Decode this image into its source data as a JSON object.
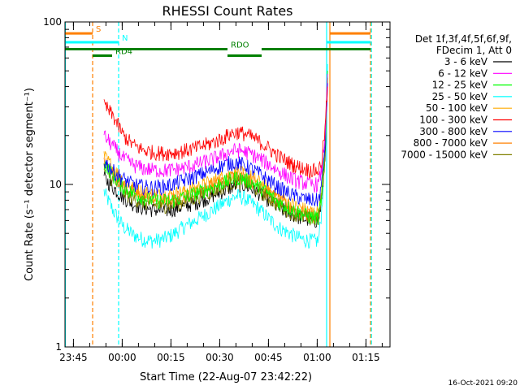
{
  "chart_data": {
    "type": "line",
    "title": "RHESSI Count Rates",
    "xlabel": "Start Time (22-Aug-07 23:42:22)",
    "ylabel": "Count Rate (s⁻¹ detector segment⁻¹)",
    "y_scale": "log",
    "ylim": [
      1,
      100
    ],
    "y_ticks": [
      {
        "value": 1,
        "label": "1"
      },
      {
        "value": 10,
        "label": "10"
      },
      {
        "value": 100,
        "label": "100"
      }
    ],
    "x_unit": "minutes after 23:42:22",
    "xlim": [
      0,
      100
    ],
    "x_ticks": [
      {
        "value": 2.6,
        "label": "23:45"
      },
      {
        "value": 17.6,
        "label": "00:00"
      },
      {
        "value": 32.6,
        "label": "00:15"
      },
      {
        "value": 47.6,
        "label": "00:30"
      },
      {
        "value": 62.6,
        "label": "00:45"
      },
      {
        "value": 77.6,
        "label": "01:00"
      },
      {
        "value": 92.6,
        "label": "01:15"
      }
    ],
    "legend_header": [
      "Det 1f,3f,4f,5f,6f,9f,",
      "FDecim 1, Att 0"
    ],
    "legend_position": "right",
    "series": [
      {
        "name": "3 - 6 keV",
        "color": "#000000",
        "x": [
          12,
          15,
          18,
          21,
          24,
          27,
          30,
          33,
          36,
          40,
          44,
          48,
          51,
          53,
          55,
          57,
          60,
          63,
          66,
          70,
          73,
          76,
          78,
          79,
          80,
          80.8
        ],
        "y": [
          11,
          9.5,
          8.3,
          7.6,
          7.2,
          7.0,
          6.9,
          7.0,
          7.3,
          7.7,
          8.3,
          9.0,
          9.6,
          10.0,
          9.9,
          9.5,
          8.8,
          7.9,
          7.1,
          6.5,
          6.2,
          6.0,
          6.0,
          8.0,
          15,
          45
        ]
      },
      {
        "name": "6 - 12 keV",
        "color": "#ff00ff",
        "x": [
          12,
          15,
          18,
          21,
          24,
          27,
          30,
          33,
          36,
          40,
          44,
          48,
          51,
          53,
          55,
          57,
          60,
          63,
          66,
          70,
          73,
          76,
          78,
          79,
          80,
          80.8
        ],
        "y": [
          20,
          17,
          14.5,
          13.2,
          12.6,
          12.3,
          12.2,
          12.3,
          12.6,
          13.2,
          14.0,
          15.0,
          16.0,
          16.3,
          16.0,
          15.5,
          14.4,
          13.2,
          12.0,
          10.8,
          10.3,
          10.0,
          10.0,
          12.5,
          20,
          48
        ]
      },
      {
        "name": "12 - 25 keV",
        "color": "#00ff00",
        "x": [
          12,
          15,
          18,
          21,
          24,
          27,
          30,
          33,
          36,
          40,
          44,
          48,
          51,
          53,
          55,
          57,
          60,
          63,
          66,
          70,
          73,
          76,
          78,
          79,
          80,
          80.8
        ],
        "y": [
          13.5,
          11.2,
          9.6,
          8.8,
          8.3,
          8.0,
          7.9,
          8.0,
          8.3,
          8.8,
          9.4,
          10.1,
          10.7,
          11.0,
          10.8,
          10.4,
          9.6,
          8.6,
          7.7,
          7.0,
          6.6,
          6.3,
          6.3,
          8.5,
          16,
          50
        ]
      },
      {
        "name": "25 - 50 keV",
        "color": "#00ffff",
        "x": [
          12,
          15,
          18,
          21,
          24,
          27,
          30,
          33,
          36,
          40,
          44,
          48,
          51,
          53,
          55,
          57,
          60,
          63,
          66,
          70,
          73,
          76,
          78,
          79,
          80,
          80.8
        ],
        "y": [
          9.0,
          6.8,
          5.5,
          4.9,
          4.6,
          4.5,
          4.6,
          4.9,
          5.4,
          6.0,
          6.7,
          7.5,
          8.2,
          8.5,
          8.3,
          7.8,
          7.0,
          6.1,
          5.4,
          4.9,
          4.6,
          4.5,
          4.5,
          7,
          15,
          55
        ]
      },
      {
        "name": "50 - 100 keV",
        "color": "#ffaa00",
        "x": [
          12,
          15,
          18,
          21,
          24,
          27,
          30,
          33,
          36,
          40,
          44,
          48,
          51,
          53,
          55,
          57,
          60,
          63,
          66,
          70,
          73,
          76,
          78,
          79,
          80,
          80.8
        ],
        "y": [
          15,
          12.5,
          10.5,
          9.5,
          9.0,
          8.7,
          8.6,
          8.7,
          9.0,
          9.5,
          10.2,
          11.0,
          11.6,
          11.9,
          11.6,
          11.2,
          10.3,
          9.3,
          8.3,
          7.5,
          7.1,
          6.8,
          6.8,
          9,
          17,
          50
        ]
      },
      {
        "name": "100 - 300 keV",
        "color": "#ff0000",
        "x": [
          12,
          15,
          18,
          21,
          24,
          27,
          30,
          33,
          36,
          40,
          44,
          48,
          51,
          53,
          55,
          57,
          60,
          63,
          66,
          70,
          73,
          76,
          78,
          79,
          80,
          80.8
        ],
        "y": [
          31,
          26,
          20,
          17.5,
          16.3,
          15.8,
          15.6,
          15.7,
          16.0,
          16.7,
          17.7,
          19.0,
          20.5,
          21.0,
          20.6,
          19.8,
          18.3,
          16.5,
          14.8,
          13.3,
          12.6,
          12.2,
          12.2,
          14,
          22,
          40
        ]
      },
      {
        "name": "300 - 800 keV",
        "color": "#0000ff",
        "x": [
          12,
          15,
          18,
          21,
          24,
          27,
          30,
          33,
          36,
          40,
          44,
          48,
          51,
          53,
          55,
          57,
          60,
          63,
          66,
          70,
          73,
          76,
          78,
          79,
          80,
          80.8
        ],
        "y": [
          14,
          12,
          10.8,
          10.0,
          9.7,
          9.6,
          9.7,
          10.0,
          10.5,
          11.2,
          12.0,
          13.0,
          13.6,
          13.6,
          13.2,
          12.6,
          11.6,
          10.5,
          9.5,
          8.6,
          8.2,
          8.0,
          8.0,
          10,
          18,
          42
        ]
      },
      {
        "name": "800 - 7000 keV",
        "color": "#ff8000",
        "x": [
          12,
          15,
          18,
          21,
          24,
          27,
          30,
          33,
          36,
          40,
          44,
          48,
          51,
          53,
          55,
          57,
          60,
          63,
          66,
          70,
          73,
          76,
          78,
          79,
          80,
          80.8
        ],
        "y": [
          14,
          11.5,
          9.8,
          8.9,
          8.4,
          8.1,
          8.0,
          8.1,
          8.4,
          8.9,
          9.6,
          10.4,
          11.0,
          11.3,
          11.0,
          10.6,
          9.8,
          8.8,
          7.9,
          7.1,
          6.7,
          6.4,
          6.4,
          8.7,
          16,
          48
        ]
      },
      {
        "name": "7000 - 15000 keV",
        "color": "#808000",
        "x": [
          12,
          15,
          18,
          21,
          24,
          27,
          30,
          33,
          36,
          40,
          44,
          48,
          51,
          53,
          55,
          57,
          60,
          63,
          66,
          70,
          73,
          76,
          78,
          79,
          80,
          80.8
        ],
        "y": [
          12.5,
          10.5,
          9.0,
          8.2,
          7.8,
          7.5,
          7.4,
          7.5,
          7.8,
          8.3,
          8.9,
          9.6,
          10.2,
          10.5,
          10.3,
          9.9,
          9.1,
          8.2,
          7.4,
          6.7,
          6.3,
          6.1,
          6.1,
          8.3,
          15,
          46
        ]
      }
    ],
    "state_bars": [
      {
        "label": "S",
        "color": "#ff8000",
        "y": 85,
        "segments": [
          [
            0,
            8.5
          ],
          [
            81.5,
            94
          ]
        ]
      },
      {
        "label": "N",
        "color": "#00ffff",
        "y": 75,
        "segments": [
          [
            0,
            16.5
          ],
          [
            80.5,
            94
          ]
        ]
      },
      {
        "label": "RDO",
        "color": "#008000",
        "y": 68,
        "segments": [
          [
            0,
            50
          ],
          [
            60.5,
            94
          ]
        ]
      },
      {
        "label": "RD4",
        "color": "#008000",
        "y": 62,
        "segments": [
          [
            8.5,
            14.5
          ],
          [
            50,
            60.5
          ]
        ]
      }
    ],
    "vertical_markers": [
      {
        "x": 0.1,
        "color": "#00ffff",
        "style": "solid"
      },
      {
        "x": 8.5,
        "color": "#ff8000",
        "style": "dashed"
      },
      {
        "x": 16.5,
        "color": "#00ffff",
        "style": "dashed"
      },
      {
        "x": 80.5,
        "color": "#00ffff",
        "style": "solid"
      },
      {
        "x": 81.5,
        "color": "#ff8000",
        "style": "solid"
      },
      {
        "x": 94,
        "color": "#ff8000",
        "style": "dashed"
      },
      {
        "x": 94.3,
        "color": "#00ffff",
        "style": "dashed"
      }
    ],
    "grid": false
  },
  "footer": {
    "timestamp": "16-Oct-2021 09:20"
  }
}
